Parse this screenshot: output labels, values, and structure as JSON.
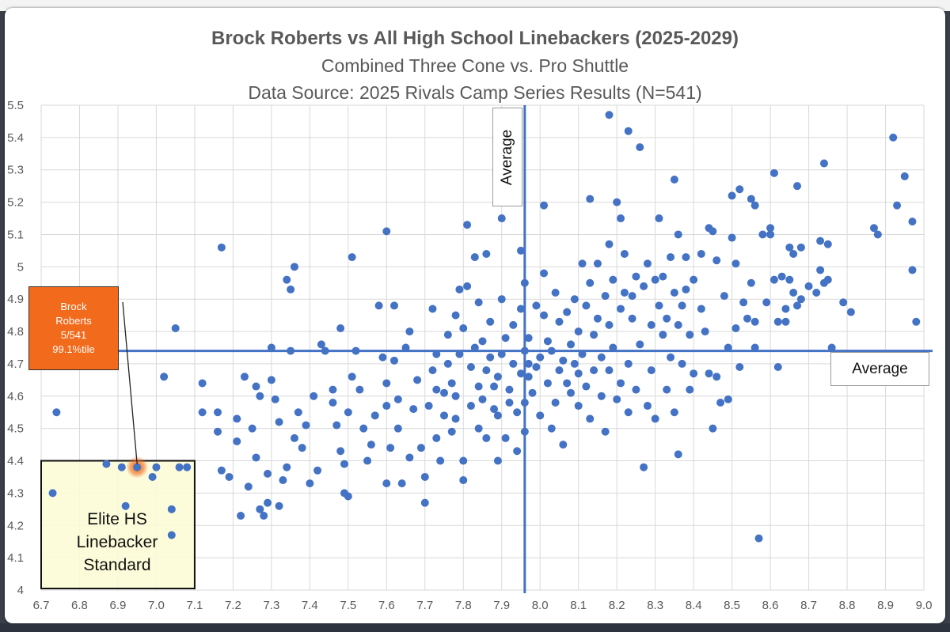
{
  "chart_data": {
    "type": "scatter",
    "title": "Brock Roberts vs All High School Linebackers (2025-2029)",
    "subtitle": "Combined Three Cone vs. Pro Shuttle",
    "source": "Data Source: 2025 Rivals Camp Series Results (N=541)",
    "xlim": [
      6.7,
      9.0
    ],
    "ylim": [
      4.0,
      5.5
    ],
    "xticks": [
      "6.7",
      "6.8",
      "6.9",
      "7.0",
      "7.1",
      "7.2",
      "7.3",
      "7.4",
      "7.5",
      "7.6",
      "7.7",
      "7.8",
      "7.9",
      "8.0",
      "8.1",
      "8.2",
      "8.3",
      "8.4",
      "8.5",
      "8.6",
      "8.7",
      "8.8",
      "8.9",
      "9.0"
    ],
    "yticks": [
      "4",
      "4.1",
      "4.2",
      "4.3",
      "4.4",
      "4.5",
      "4.6",
      "4.7",
      "4.8",
      "4.9",
      "5",
      "5.1",
      "5.2",
      "5.3",
      "5.4",
      "5.5"
    ],
    "grid": true,
    "series_color": "#4472c4",
    "average_x": 7.96,
    "average_y": 4.74,
    "average_label": "Average",
    "highlight": {
      "x": 6.95,
      "y": 4.38,
      "color": "#f26a1b",
      "lines": [
        "Brock",
        "Roberts",
        "5/541",
        "99.1%tile"
      ]
    },
    "elite_zone": {
      "x_range": [
        6.7,
        7.1
      ],
      "y_range": [
        4.0,
        4.4
      ],
      "fill": "#fbfbd9",
      "lines": [
        "Elite HS",
        "Linebacker",
        "Standard"
      ]
    },
    "points": [
      [
        6.74,
        4.55
      ],
      [
        6.73,
        4.3
      ],
      [
        6.87,
        4.39
      ],
      [
        6.91,
        4.38
      ],
      [
        6.92,
        4.26
      ],
      [
        6.99,
        4.35
      ],
      [
        7.0,
        4.38
      ],
      [
        7.02,
        4.66
      ],
      [
        7.04,
        4.25
      ],
      [
        7.04,
        4.17
      ],
      [
        7.06,
        4.38
      ],
      [
        7.08,
        4.38
      ],
      [
        7.05,
        4.81
      ],
      [
        7.17,
        5.06
      ],
      [
        7.12,
        4.64
      ],
      [
        7.12,
        4.55
      ],
      [
        7.16,
        4.55
      ],
      [
        7.16,
        4.49
      ],
      [
        7.17,
        4.37
      ],
      [
        7.19,
        4.35
      ],
      [
        7.21,
        4.53
      ],
      [
        7.21,
        4.46
      ],
      [
        7.22,
        4.23
      ],
      [
        7.23,
        4.66
      ],
      [
        7.24,
        4.32
      ],
      [
        7.25,
        4.5
      ],
      [
        7.26,
        4.63
      ],
      [
        7.26,
        4.41
      ],
      [
        7.27,
        4.25
      ],
      [
        7.28,
        4.23
      ],
      [
        7.27,
        4.6
      ],
      [
        7.29,
        4.27
      ],
      [
        7.29,
        4.36
      ],
      [
        7.3,
        4.65
      ],
      [
        7.31,
        4.59
      ],
      [
        7.32,
        4.52
      ],
      [
        7.32,
        4.26
      ],
      [
        7.33,
        4.34
      ],
      [
        7.34,
        4.96
      ],
      [
        7.35,
        4.93
      ],
      [
        7.36,
        5.0
      ],
      [
        7.34,
        4.38
      ],
      [
        7.36,
        4.47
      ],
      [
        7.37,
        4.55
      ],
      [
        7.38,
        4.44
      ],
      [
        7.39,
        4.51
      ],
      [
        7.4,
        4.33
      ],
      [
        7.41,
        4.6
      ],
      [
        7.42,
        4.37
      ],
      [
        7.43,
        4.76
      ],
      [
        7.3,
        4.75
      ],
      [
        7.35,
        4.74
      ],
      [
        7.44,
        4.74
      ],
      [
        7.46,
        4.58
      ],
      [
        7.46,
        4.62
      ],
      [
        7.47,
        4.51
      ],
      [
        7.48,
        4.43
      ],
      [
        7.49,
        4.39
      ],
      [
        7.49,
        4.3
      ],
      [
        7.5,
        4.29
      ],
      [
        7.5,
        4.55
      ],
      [
        7.51,
        4.66
      ],
      [
        7.48,
        4.81
      ],
      [
        7.51,
        5.03
      ],
      [
        7.52,
        4.74
      ],
      [
        7.53,
        4.62
      ],
      [
        7.54,
        4.5
      ],
      [
        7.55,
        4.4
      ],
      [
        7.56,
        4.45
      ],
      [
        7.57,
        4.54
      ],
      [
        7.58,
        4.88
      ],
      [
        7.59,
        4.72
      ],
      [
        7.6,
        4.57
      ],
      [
        7.6,
        5.11
      ],
      [
        7.6,
        4.33
      ],
      [
        7.6,
        4.64
      ],
      [
        7.61,
        4.44
      ],
      [
        7.62,
        4.88
      ],
      [
        7.62,
        4.71
      ],
      [
        7.63,
        4.59
      ],
      [
        7.63,
        4.5
      ],
      [
        7.64,
        4.33
      ],
      [
        7.65,
        4.75
      ],
      [
        7.66,
        4.8
      ],
      [
        7.66,
        4.41
      ],
      [
        7.67,
        4.56
      ],
      [
        7.68,
        4.65
      ],
      [
        7.69,
        4.44
      ],
      [
        7.7,
        4.35
      ],
      [
        7.7,
        4.27
      ],
      [
        7.71,
        4.57
      ],
      [
        7.72,
        4.68
      ],
      [
        7.72,
        4.87
      ],
      [
        7.73,
        4.73
      ],
      [
        7.73,
        4.62
      ],
      [
        7.73,
        4.47
      ],
      [
        7.74,
        4.4
      ],
      [
        7.75,
        4.54
      ],
      [
        7.75,
        4.61
      ],
      [
        7.76,
        4.7
      ],
      [
        7.76,
        4.79
      ],
      [
        7.77,
        4.49
      ],
      [
        7.77,
        4.64
      ],
      [
        7.78,
        4.6
      ],
      [
        7.78,
        4.53
      ],
      [
        7.78,
        4.85
      ],
      [
        7.79,
        4.93
      ],
      [
        7.79,
        4.73
      ],
      [
        7.8,
        4.81
      ],
      [
        7.8,
        4.4
      ],
      [
        7.8,
        4.34
      ],
      [
        7.81,
        4.94
      ],
      [
        7.81,
        5.13
      ],
      [
        7.82,
        4.57
      ],
      [
        7.82,
        4.69
      ],
      [
        7.83,
        5.03
      ],
      [
        7.83,
        4.75
      ],
      [
        7.84,
        4.63
      ],
      [
        7.84,
        4.5
      ],
      [
        7.84,
        4.89
      ],
      [
        7.85,
        4.77
      ],
      [
        7.85,
        4.59
      ],
      [
        7.86,
        4.68
      ],
      [
        7.86,
        4.47
      ],
      [
        7.86,
        5.04
      ],
      [
        7.87,
        4.72
      ],
      [
        7.87,
        4.83
      ],
      [
        7.88,
        4.56
      ],
      [
        7.88,
        4.63
      ],
      [
        7.89,
        4.66
      ],
      [
        7.89,
        4.54
      ],
      [
        7.89,
        4.4
      ],
      [
        7.9,
        4.73
      ],
      [
        7.9,
        4.9
      ],
      [
        7.9,
        5.15
      ],
      [
        7.91,
        4.47
      ],
      [
        7.91,
        4.78
      ],
      [
        7.92,
        4.62
      ],
      [
        7.92,
        4.58
      ],
      [
        7.93,
        4.82
      ],
      [
        7.93,
        4.7
      ],
      [
        7.94,
        4.55
      ],
      [
        7.94,
        4.43
      ],
      [
        7.95,
        5.05
      ],
      [
        7.95,
        4.67
      ],
      [
        7.95,
        4.87
      ],
      [
        7.96,
        4.74
      ],
      [
        7.96,
        4.95
      ],
      [
        7.96,
        4.58
      ],
      [
        7.96,
        4.49
      ],
      [
        7.97,
        4.66
      ],
      [
        7.97,
        4.78
      ],
      [
        7.97,
        4.7
      ],
      [
        7.98,
        4.61
      ],
      [
        7.99,
        4.88
      ],
      [
        7.99,
        4.69
      ],
      [
        8.0,
        4.54
      ],
      [
        8.0,
        4.72
      ],
      [
        8.01,
        5.19
      ],
      [
        8.01,
        4.85
      ],
      [
        8.01,
        4.98
      ],
      [
        8.02,
        4.77
      ],
      [
        8.02,
        4.64
      ],
      [
        8.03,
        4.5
      ],
      [
        8.03,
        4.74
      ],
      [
        8.04,
        4.92
      ],
      [
        8.04,
        4.58
      ],
      [
        8.05,
        4.68
      ],
      [
        8.05,
        4.83
      ],
      [
        8.06,
        4.45
      ],
      [
        8.06,
        4.71
      ],
      [
        8.07,
        4.86
      ],
      [
        8.07,
        4.64
      ],
      [
        8.08,
        4.76
      ],
      [
        8.08,
        4.61
      ],
      [
        8.09,
        4.9
      ],
      [
        8.09,
        4.7
      ],
      [
        8.1,
        4.8
      ],
      [
        8.1,
        4.57
      ],
      [
        8.1,
        4.67
      ],
      [
        8.11,
        5.01
      ],
      [
        8.11,
        4.73
      ],
      [
        8.12,
        4.88
      ],
      [
        8.12,
        4.63
      ],
      [
        8.13,
        5.21
      ],
      [
        8.13,
        4.95
      ],
      [
        8.13,
        4.53
      ],
      [
        8.14,
        4.79
      ],
      [
        8.14,
        4.68
      ],
      [
        8.15,
        4.84
      ],
      [
        8.15,
        5.01
      ],
      [
        8.16,
        4.72
      ],
      [
        8.16,
        4.6
      ],
      [
        8.17,
        4.91
      ],
      [
        8.17,
        4.49
      ],
      [
        8.18,
        4.82
      ],
      [
        8.18,
        4.68
      ],
      [
        8.18,
        5.07
      ],
      [
        8.19,
        4.75
      ],
      [
        8.19,
        4.96
      ],
      [
        8.2,
        4.59
      ],
      [
        8.2,
        5.2
      ],
      [
        8.21,
        4.87
      ],
      [
        8.21,
        4.64
      ],
      [
        8.21,
        5.15
      ],
      [
        8.22,
        4.92
      ],
      [
        8.22,
        5.04
      ],
      [
        8.23,
        4.7
      ],
      [
        8.23,
        4.55
      ],
      [
        8.23,
        5.42
      ],
      [
        8.24,
        4.91
      ],
      [
        8.24,
        4.84
      ],
      [
        8.25,
        4.62
      ],
      [
        8.25,
        4.97
      ],
      [
        8.26,
        5.37
      ],
      [
        8.26,
        4.76
      ],
      [
        8.27,
        4.38
      ],
      [
        8.27,
        4.94
      ],
      [
        8.28,
        4.57
      ],
      [
        8.28,
        5.01
      ],
      [
        8.29,
        4.82
      ],
      [
        8.29,
        4.68
      ],
      [
        8.3,
        4.96
      ],
      [
        8.3,
        4.53
      ],
      [
        8.31,
        5.15
      ],
      [
        8.31,
        4.88
      ],
      [
        8.32,
        4.79
      ],
      [
        8.32,
        4.97
      ],
      [
        8.33,
        4.62
      ],
      [
        8.33,
        4.84
      ],
      [
        8.34,
        5.03
      ],
      [
        8.34,
        4.72
      ],
      [
        8.35,
        5.27
      ],
      [
        8.35,
        4.92
      ],
      [
        8.35,
        4.55
      ],
      [
        8.36,
        5.1
      ],
      [
        8.36,
        4.82
      ],
      [
        8.36,
        4.42
      ],
      [
        8.37,
        4.88
      ],
      [
        8.37,
        4.7
      ],
      [
        8.38,
        5.03
      ],
      [
        8.38,
        4.93
      ],
      [
        8.39,
        4.79
      ],
      [
        8.39,
        4.62
      ],
      [
        8.4,
        4.96
      ],
      [
        8.4,
        4.67
      ],
      [
        8.42,
        4.87
      ],
      [
        8.42,
        5.04
      ],
      [
        8.43,
        4.8
      ],
      [
        8.44,
        5.12
      ],
      [
        8.44,
        4.67
      ],
      [
        8.45,
        5.11
      ],
      [
        8.45,
        4.5
      ],
      [
        8.46,
        4.66
      ],
      [
        8.46,
        5.02
      ],
      [
        8.47,
        4.58
      ],
      [
        8.48,
        4.91
      ],
      [
        8.49,
        4.75
      ],
      [
        8.49,
        4.59
      ],
      [
        8.5,
        5.09
      ],
      [
        8.5,
        5.22
      ],
      [
        8.51,
        4.81
      ],
      [
        8.51,
        5.01
      ],
      [
        8.52,
        5.24
      ],
      [
        8.52,
        4.69
      ],
      [
        8.53,
        4.89
      ],
      [
        8.54,
        4.84
      ],
      [
        8.55,
        5.21
      ],
      [
        8.55,
        4.95
      ],
      [
        8.56,
        4.83
      ],
      [
        8.56,
        4.75
      ],
      [
        8.56,
        5.19
      ],
      [
        8.57,
        4.16
      ],
      [
        8.58,
        5.1
      ],
      [
        8.59,
        4.89
      ],
      [
        8.6,
        5.12
      ],
      [
        8.6,
        5.1
      ],
      [
        8.61,
        5.29
      ],
      [
        8.61,
        4.96
      ],
      [
        8.62,
        4.69
      ],
      [
        8.62,
        4.83
      ],
      [
        8.63,
        4.97
      ],
      [
        8.64,
        4.83
      ],
      [
        8.64,
        4.87
      ],
      [
        8.65,
        5.06
      ],
      [
        8.65,
        4.96
      ],
      [
        8.66,
        5.04
      ],
      [
        8.66,
        4.92
      ],
      [
        8.67,
        5.25
      ],
      [
        8.67,
        4.88
      ],
      [
        8.68,
        5.06
      ],
      [
        8.68,
        4.9
      ],
      [
        8.7,
        4.94
      ],
      [
        8.72,
        4.92
      ],
      [
        8.73,
        4.99
      ],
      [
        8.73,
        5.08
      ],
      [
        8.74,
        5.32
      ],
      [
        8.74,
        4.95
      ],
      [
        8.75,
        5.07
      ],
      [
        8.75,
        4.96
      ],
      [
        8.76,
        4.75
      ],
      [
        8.79,
        4.89
      ],
      [
        8.81,
        4.86
      ],
      [
        8.87,
        5.12
      ],
      [
        8.88,
        5.1
      ],
      [
        8.92,
        5.4
      ],
      [
        8.93,
        5.19
      ],
      [
        8.95,
        5.28
      ],
      [
        8.97,
        5.14
      ],
      [
        8.97,
        4.99
      ],
      [
        8.98,
        4.83
      ],
      [
        8.18,
        5.47
      ]
    ]
  }
}
